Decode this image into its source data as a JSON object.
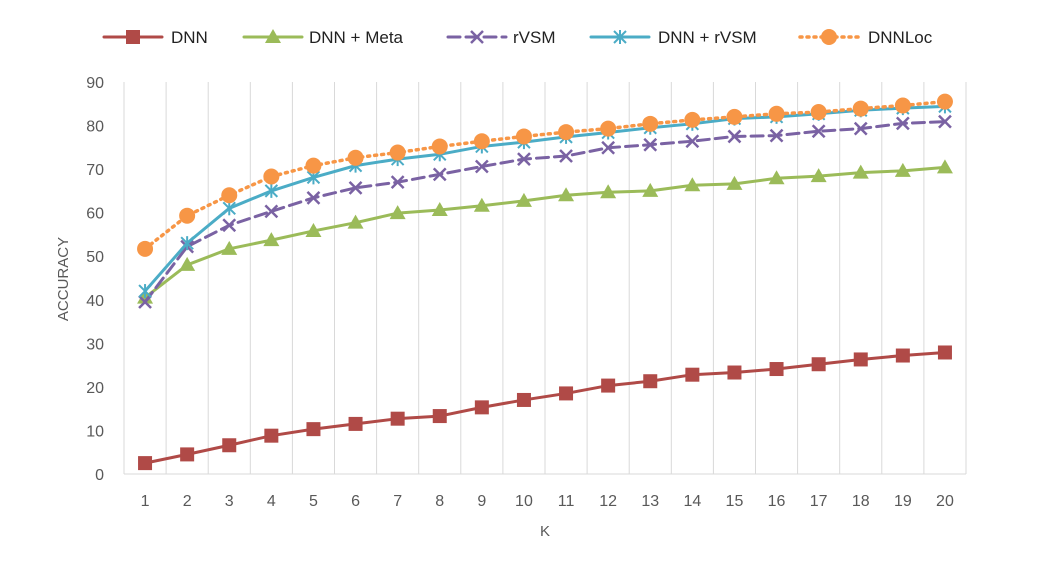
{
  "chart_data": {
    "type": "line",
    "title": "",
    "xlabel": "K",
    "ylabel": "ACCURACY",
    "x": [
      1,
      2,
      3,
      4,
      5,
      6,
      7,
      8,
      9,
      10,
      11,
      12,
      13,
      14,
      15,
      16,
      17,
      18,
      19,
      20
    ],
    "x_tick_labels": [
      "1",
      "2",
      "3",
      "4",
      "5",
      "6",
      "7",
      "8",
      "9",
      "10",
      "11",
      "12",
      "13",
      "14",
      "15",
      "16",
      "17",
      "18",
      "19",
      "20"
    ],
    "ylim": [
      0,
      90
    ],
    "y_ticks": [
      0,
      10,
      20,
      30,
      40,
      50,
      60,
      70,
      80,
      90
    ],
    "y_tick_labels": [
      "0",
      "10",
      "20",
      "30",
      "40",
      "50",
      "60",
      "70",
      "80",
      "90"
    ],
    "grid": "vertical",
    "legend_position": "top",
    "series": [
      {
        "name": "DNN",
        "color": "#b04a47",
        "marker": "square",
        "dash": "solid",
        "values": [
          2.5,
          4.5,
          6.6,
          8.8,
          10.3,
          11.5,
          12.7,
          13.3,
          15.3,
          17.0,
          18.5,
          20.3,
          21.3,
          22.8,
          23.3,
          24.1,
          25.2,
          26.3,
          27.2,
          27.9
        ]
      },
      {
        "name": "DNN + Meta",
        "color": "#9bbb59",
        "marker": "triangle",
        "dash": "solid",
        "values": [
          40.5,
          48.0,
          51.7,
          53.7,
          55.8,
          57.7,
          59.9,
          60.6,
          61.6,
          62.7,
          64.0,
          64.7,
          65.0,
          66.3,
          66.6,
          67.9,
          68.4,
          69.2,
          69.6,
          70.4
        ]
      },
      {
        "name": "rVSM",
        "color": "#7a62a3",
        "marker": "x",
        "dash": "dashed",
        "values": [
          39.5,
          52.2,
          57.1,
          60.3,
          63.4,
          65.7,
          67.0,
          68.8,
          70.6,
          72.3,
          73.0,
          74.9,
          75.6,
          76.4,
          77.5,
          77.7,
          78.7,
          79.3,
          80.5,
          80.9
        ]
      },
      {
        "name": "DNN + rVSM",
        "color": "#4bacc6",
        "marker": "asterisk",
        "dash": "solid",
        "values": [
          42.0,
          53.0,
          61.0,
          65.0,
          68.1,
          70.8,
          72.3,
          73.4,
          75.2,
          76.2,
          77.4,
          78.4,
          79.5,
          80.4,
          81.6,
          82.0,
          82.7,
          83.5,
          84.0,
          84.4
        ]
      },
      {
        "name": "DNNLoc",
        "color": "#f79646",
        "marker": "circle",
        "dash": "dotted",
        "values": [
          51.7,
          59.3,
          64.0,
          68.3,
          70.8,
          72.6,
          73.8,
          75.2,
          76.4,
          77.5,
          78.5,
          79.3,
          80.4,
          81.3,
          82.0,
          82.7,
          83.1,
          83.9,
          84.6,
          85.5
        ]
      }
    ]
  }
}
